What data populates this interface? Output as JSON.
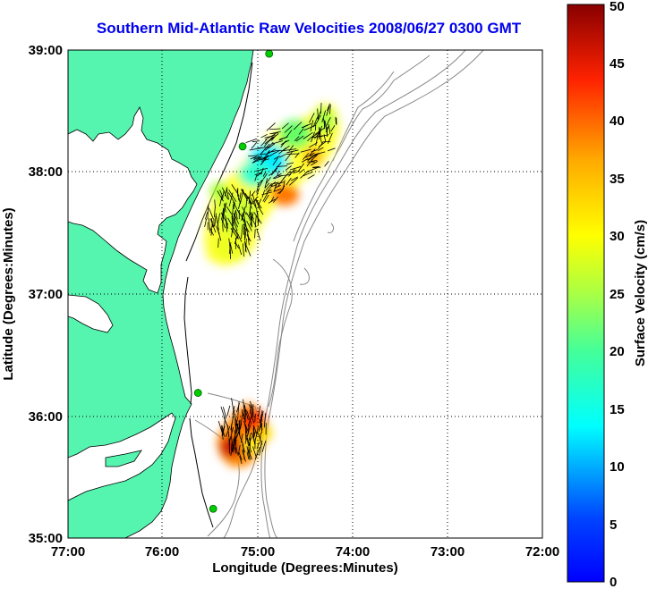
{
  "title": "Southern Mid-Atlantic Raw Velocities 2008/06/27 0300 GMT",
  "axes": {
    "xlabel": "Longitude (Degrees:Minutes)",
    "ylabel": "Latitude (Degrees:Minutes)",
    "x_ticks": [
      "77:00",
      "76:00",
      "75:00",
      "74:00",
      "73:00",
      "72:00"
    ],
    "y_ticks": [
      "39:00",
      "38:00",
      "37:00",
      "36:00",
      "35:00"
    ],
    "xlim": [
      -77,
      -72
    ],
    "ylim": [
      35,
      39
    ],
    "grid": "dotted"
  },
  "colorbar": {
    "label": "Surface Velocity (cm/s)",
    "range": [
      0,
      50
    ],
    "ticks": [
      "0",
      "5",
      "10",
      "15",
      "20",
      "25",
      "30",
      "35",
      "40",
      "45",
      "50"
    ],
    "colormap": "jet"
  },
  "colors": {
    "land": "#55f5b0",
    "water": "#ffffff",
    "title": "#0000ee",
    "bathymetry": "#888888",
    "station": "#00cc00"
  },
  "stations": [
    {
      "lon": -74.88,
      "lat": 38.97
    },
    {
      "lon": -75.16,
      "lat": 38.21
    },
    {
      "lon": -75.63,
      "lat": 36.19
    },
    {
      "lon": -75.47,
      "lat": 35.24
    }
  ]
}
